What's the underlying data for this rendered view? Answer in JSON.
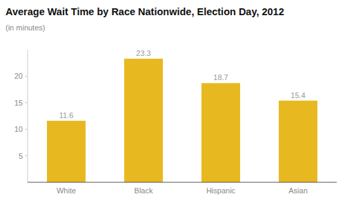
{
  "chart_data": {
    "type": "bar",
    "title": "Average Wait Time by Race Nationwide, Election Day, 2012",
    "subtitle": "(in minutes)",
    "categories": [
      "White",
      "Black",
      "Hispanic",
      "Asian"
    ],
    "values": [
      11.6,
      23.3,
      18.7,
      15.4
    ],
    "color": "#E8B820",
    "ylim": [
      0,
      25
    ],
    "yticks": [
      5,
      10,
      15,
      20
    ],
    "grid": false,
    "data_labels": true
  }
}
